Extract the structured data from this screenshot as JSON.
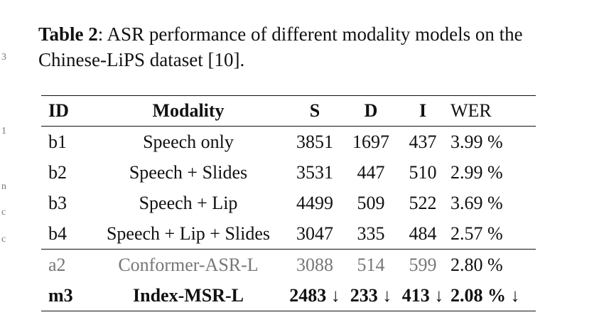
{
  "caption": {
    "label": "Table 2",
    "text": ": ASR performance of different modality models on the Chinese-LiPS dataset [10]."
  },
  "margin_chars": [
    "3",
    "1",
    "n",
    "c",
    "c"
  ],
  "table": {
    "headers": {
      "id": "ID",
      "modality": "Modality",
      "s": "S",
      "d": "D",
      "i": "I",
      "wer": "WER"
    },
    "rows": [
      {
        "id": "b1",
        "modality": "Speech only",
        "s": "3851",
        "d": "1697",
        "i": "437",
        "wer": "3.99 %"
      },
      {
        "id": "b2",
        "modality": "Speech + Slides",
        "s": "3531",
        "d": "447",
        "i": "510",
        "wer": "2.99 %"
      },
      {
        "id": "b3",
        "modality": "Speech + Lip",
        "s": "4499",
        "d": "509",
        "i": "522",
        "wer": "3.69 %"
      },
      {
        "id": "b4",
        "modality": "Speech + Lip + Slides",
        "s": "3047",
        "d": "335",
        "i": "484",
        "wer": "2.57 %"
      },
      {
        "id": "a2",
        "modality": "Conformer-ASR-L",
        "s": "3088",
        "d": "514",
        "i": "599",
        "wer": "2.80 %"
      },
      {
        "id": "m3",
        "modality": "Index-MSR-L",
        "s": "2483 ↓",
        "d": "233 ↓",
        "i": "413 ↓",
        "wer": "2.08 % ↓"
      }
    ]
  }
}
